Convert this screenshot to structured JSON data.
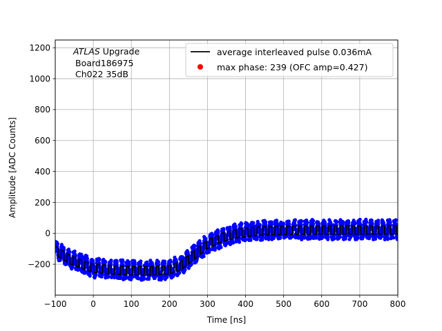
{
  "chart_data": {
    "type": "scatter",
    "title": "",
    "xlabel": "Time [ns]",
    "ylabel": "Amplitude [ADC Counts]",
    "xlim": [
      -100,
      800
    ],
    "ylim": [
      -400,
      1250
    ],
    "grid": true,
    "xticks": [
      -100,
      0,
      100,
      200,
      300,
      400,
      500,
      600,
      700,
      800
    ],
    "yticks": [
      -200,
      0,
      200,
      400,
      600,
      800,
      1000,
      1200
    ],
    "xtick_labels": [
      "−100",
      "0",
      "100",
      "200",
      "300",
      "400",
      "500",
      "600",
      "700",
      "800"
    ],
    "ytick_labels": [
      "−200",
      "0",
      "200",
      "400",
      "600",
      "800",
      "1000",
      "1200"
    ],
    "annotation": {
      "italic": "ATLAS",
      "rest": " Upgrade",
      "line2": "Board186975",
      "line3": "Ch022 35dB"
    },
    "legend": {
      "position": "top-right",
      "entries": [
        {
          "label": "average interleaved pulse 0.036mA",
          "marker": "line",
          "color": "#000000"
        },
        {
          "label": "max phase: 239 (OFC amp=0.427)",
          "marker": "dot",
          "color": "#ff0000"
        }
      ]
    },
    "series": [
      {
        "name": "average interleaved pulse 0.036mA",
        "kind": "line",
        "color": "#000000",
        "envelope": {
          "x": [
            -100,
            -60,
            -20,
            0,
            50,
            100,
            150,
            200,
            230,
            260,
            300,
            340,
            380,
            420,
            460,
            500,
            550,
            600,
            700,
            800
          ],
          "y": [
            -130,
            -190,
            -230,
            -245,
            -255,
            -262,
            -262,
            -255,
            -230,
            -170,
            -90,
            -45,
            -20,
            -8,
            -2,
            0,
            2,
            3,
            3,
            3
          ]
        },
        "ripple_period_ns": 15.6,
        "ripple_amplitude": 55
      },
      {
        "name": "interleaved samples",
        "kind": "scatter",
        "color": "#0000ff",
        "noise_amplitude": 30
      },
      {
        "name": "max phase: 239 (OFC amp=0.427)",
        "kind": "scatter",
        "color": "#ff0000",
        "points": []
      }
    ]
  }
}
